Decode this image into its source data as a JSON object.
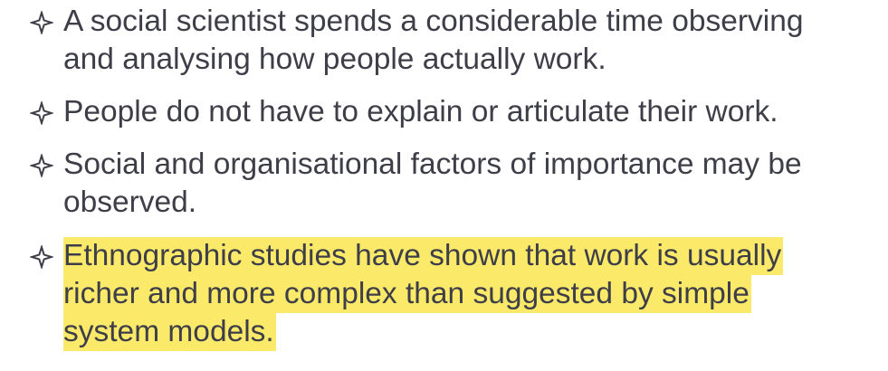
{
  "bullets": [
    {
      "lines": [
        "A social scientist spends a considerable time observing",
        "and analysing how people actually work."
      ],
      "highlighted": false
    },
    {
      "lines": [
        "People do not have to explain or articulate their work."
      ],
      "highlighted": false
    },
    {
      "lines": [
        "Social and organisational factors of importance may be",
        "observed."
      ],
      "highlighted": false
    },
    {
      "lines": [
        "Ethnographic studies have shown that work is usually",
        "richer and more complex than suggested by simple",
        "system models."
      ],
      "highlighted": true
    }
  ],
  "colors": {
    "text": "#3e3e48",
    "highlight": "#fbe96a",
    "marker": "#3e3e48"
  },
  "marker_icon": "four-point-star-outline-icon"
}
